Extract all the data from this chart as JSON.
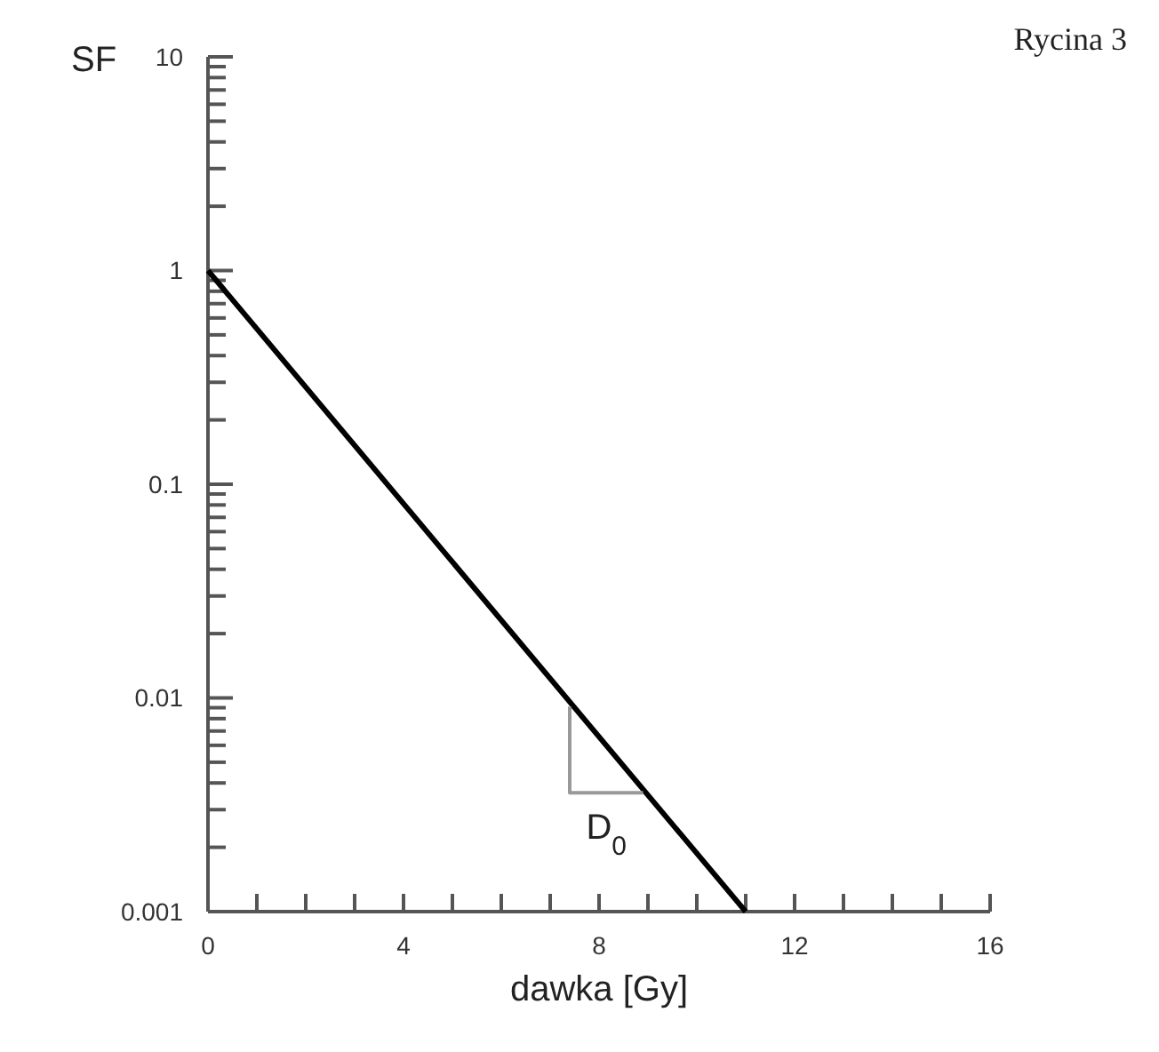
{
  "chart_data": {
    "type": "line",
    "title": "Rycina 3",
    "xlabel": "dawka [Gy]",
    "ylabel": "SF",
    "log": "y",
    "marker": "none",
    "line_style": "solid",
    "xlim": [
      0,
      16
    ],
    "ylim": [
      0.001,
      10
    ],
    "xticks": [
      0,
      {
        "value": 1,
        "label": null
      },
      {
        "value": 2,
        "label": null
      },
      {
        "value": 3,
        "label": null
      },
      4,
      {
        "value": 5,
        "label": null
      },
      {
        "value": 6,
        "label": null
      },
      {
        "value": 7,
        "label": null
      },
      8,
      {
        "value": 9,
        "label": null
      },
      {
        "value": 10,
        "label": null
      },
      {
        "value": 11,
        "label": null
      },
      12,
      {
        "value": 13,
        "label": null
      },
      {
        "value": 14,
        "label": null
      },
      {
        "value": 15,
        "label": null
      },
      16
    ],
    "yticks": [
      0.001,
      {
        "value": 0.002,
        "label": null
      },
      {
        "value": 0.003,
        "label": null
      },
      {
        "value": 0.004,
        "label": null
      },
      {
        "value": 0.005,
        "label": null
      },
      {
        "value": 0.006,
        "label": null
      },
      {
        "value": 0.007,
        "label": null
      },
      {
        "value": 0.008,
        "label": null
      },
      {
        "value": 0.009,
        "label": null
      },
      0.01,
      {
        "value": 0.02,
        "label": null
      },
      {
        "value": 0.03,
        "label": null
      },
      {
        "value": 0.04,
        "label": null
      },
      {
        "value": 0.05,
        "label": null
      },
      {
        "value": 0.06,
        "label": null
      },
      {
        "value": 0.07,
        "label": null
      },
      {
        "value": 0.08,
        "label": null
      },
      {
        "value": 0.09,
        "label": null
      },
      0.1,
      {
        "value": 0.2,
        "label": null
      },
      {
        "value": 0.3,
        "label": null
      },
      {
        "value": 0.4,
        "label": null
      },
      {
        "value": 0.5,
        "label": null
      },
      {
        "value": 0.6,
        "label": null
      },
      {
        "value": 0.7,
        "label": null
      },
      {
        "value": 0.8,
        "label": null
      },
      {
        "value": 0.9,
        "label": null
      },
      1,
      {
        "value": 2,
        "label": null
      },
      {
        "value": 3,
        "label": null
      },
      {
        "value": 4,
        "label": null
      },
      {
        "value": 5,
        "label": null
      },
      {
        "value": 6,
        "label": null
      },
      {
        "value": 7,
        "label": null
      },
      {
        "value": 8,
        "label": null
      },
      {
        "value": 9,
        "label": null
      },
      10
    ],
    "series": [
      {
        "color": "#000000",
        "x": [
          0,
          11
        ],
        "values": [
          1,
          0.001
        ]
      },
      {
        "color": "#999999",
        "x": [
          7.4,
          7.4,
          8.9
        ],
        "values": [
          0.0091,
          0.0036,
          0.0036
        ]
      }
    ],
    "annotations": [
      "D$_{0}$"
    ]
  }
}
